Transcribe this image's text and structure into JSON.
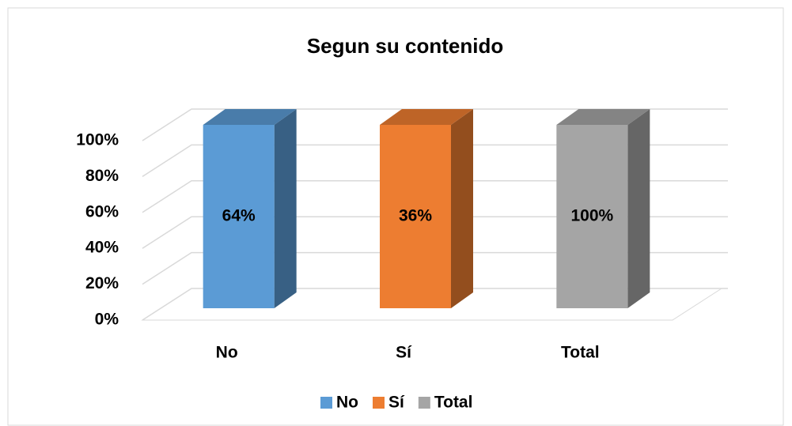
{
  "chart_data": {
    "type": "bar",
    "stacked": "percent",
    "title": "Segun su contenido",
    "categories": [
      "No",
      "Sí",
      "Total"
    ],
    "series": [
      {
        "name": "No",
        "color": "#5b9bd5",
        "values": [
          64,
          null,
          null
        ],
        "value_labels": [
          "64%",
          null,
          null
        ]
      },
      {
        "name": "Sí",
        "color": "#ed7d31",
        "values": [
          null,
          36,
          null
        ],
        "value_labels": [
          null,
          "36%",
          null
        ]
      },
      {
        "name": "Total",
        "color": "#a5a5a5",
        "values": [
          null,
          null,
          100
        ],
        "value_labels": [
          null,
          null,
          "100%"
        ]
      }
    ],
    "ylim": [
      0,
      100
    ],
    "yticks": [
      {
        "value": 0,
        "label": "0%"
      },
      {
        "value": 20,
        "label": "20%"
      },
      {
        "value": 40,
        "label": "40%"
      },
      {
        "value": 60,
        "label": "60%"
      },
      {
        "value": 80,
        "label": "80%"
      },
      {
        "value": 100,
        "label": "100%"
      }
    ],
    "grid": true,
    "legend": "bottom"
  }
}
